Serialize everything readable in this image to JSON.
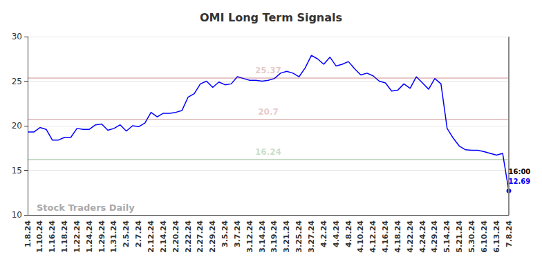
{
  "chart_data": {
    "type": "line",
    "title": "OMI Long Term Signals",
    "watermark": "Stock Traders Daily",
    "categories": [
      "1.8.24",
      null,
      "1.10.24",
      null,
      "1.16.24",
      null,
      "1.18.24",
      null,
      "1.22.24",
      null,
      "1.24.24",
      null,
      "1.29.24",
      null,
      "1.31.24",
      null,
      "2.5.24",
      null,
      "2.7.24",
      null,
      "2.12.24",
      null,
      "2.14.24",
      null,
      "2.20.24",
      null,
      "2.22.24",
      null,
      "2.27.24",
      null,
      "2.29.24",
      null,
      "3.5.24",
      null,
      "3.7.24",
      null,
      "3.12.24",
      null,
      "3.14.24",
      null,
      "3.19.24",
      null,
      "3.21.24",
      null,
      "3.25.24",
      null,
      "3.27.24",
      null,
      "4.2.24",
      null,
      "4.4.24",
      null,
      "4.8.24",
      null,
      "4.10.24",
      null,
      "4.12.24",
      null,
      "4.16.24",
      null,
      "4.18.24",
      null,
      "4.22.24",
      null,
      "4.24.24",
      null,
      "4.29.24",
      null,
      "5.14.24",
      null,
      "5.21.24",
      null,
      "5.30.24",
      null,
      "6.10.24",
      null,
      "6.13.24",
      null,
      "7.8.24"
    ],
    "series": [
      {
        "name": "OMI",
        "color": "#0000ff",
        "values": [
          19.3,
          19.3,
          19.8,
          19.6,
          18.4,
          18.4,
          18.7,
          18.7,
          19.7,
          19.6,
          19.6,
          20.1,
          20.2,
          19.5,
          19.7,
          20.1,
          19.4,
          20.0,
          19.9,
          20.3,
          21.5,
          21.0,
          21.4,
          21.4,
          21.5,
          21.7,
          23.2,
          23.6,
          24.7,
          25.0,
          24.3,
          24.9,
          24.6,
          24.7,
          25.5,
          25.3,
          25.1,
          25.1,
          25.0,
          25.1,
          25.3,
          25.9,
          26.1,
          25.9,
          25.5,
          26.5,
          27.9,
          27.5,
          26.9,
          27.7,
          26.7,
          26.9,
          27.2,
          26.4,
          25.7,
          25.9,
          25.6,
          25.0,
          24.8,
          23.9,
          24.0,
          24.7,
          24.2,
          25.5,
          24.8,
          24.1,
          25.3,
          24.7,
          19.7,
          18.6,
          17.7,
          17.3,
          17.25,
          17.25,
          17.1,
          16.9,
          16.7,
          16.9,
          12.69
        ]
      }
    ],
    "reference_lines": [
      {
        "value": 25.37,
        "color": "#8b0000"
      },
      {
        "value": 20.7,
        "color": "#8b0000"
      },
      {
        "value": 16.24,
        "color": "#006400"
      }
    ],
    "annotations": [
      "16:00",
      "12.69"
    ],
    "ylim": [
      10,
      30
    ],
    "yticks": [
      10,
      15,
      20,
      25,
      30
    ],
    "grid": true
  }
}
